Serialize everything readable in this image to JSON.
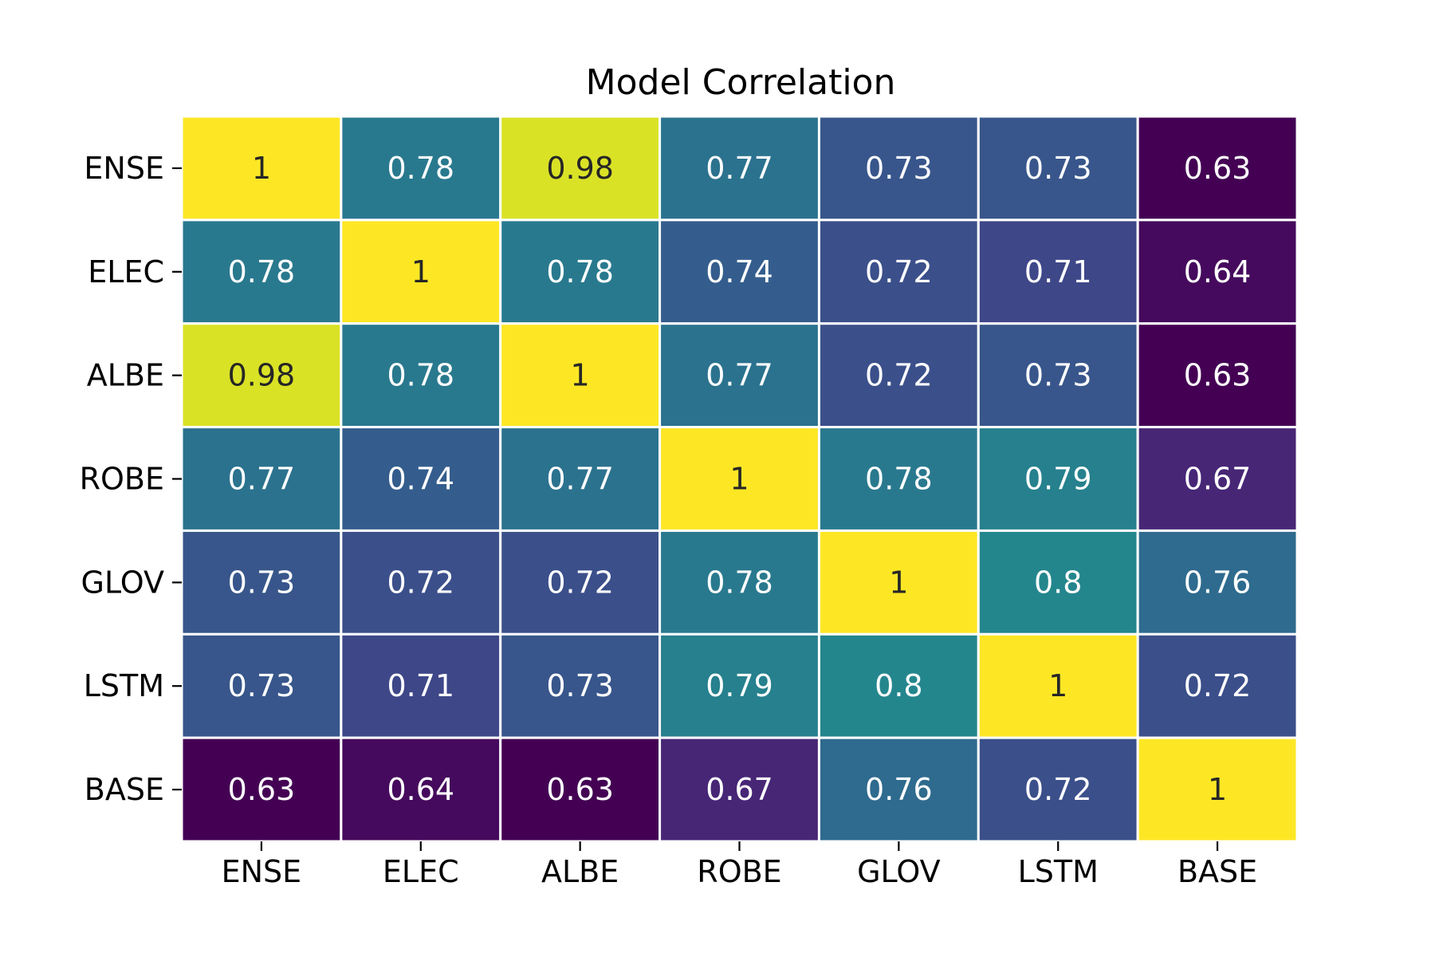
{
  "chart_data": {
    "type": "heatmap",
    "title": "Model Correlation",
    "xlabel": "",
    "ylabel": "",
    "x_categories": [
      "ENSE",
      "ELEC",
      "ALBE",
      "ROBE",
      "GLOV",
      "LSTM",
      "BASE"
    ],
    "y_categories": [
      "ENSE",
      "ELEC",
      "ALBE",
      "ROBE",
      "GLOV",
      "LSTM",
      "BASE"
    ],
    "values": [
      [
        1,
        0.78,
        0.98,
        0.77,
        0.73,
        0.73,
        0.63
      ],
      [
        0.78,
        1,
        0.78,
        0.74,
        0.72,
        0.71,
        0.64
      ],
      [
        0.98,
        0.78,
        1,
        0.77,
        0.72,
        0.73,
        0.63
      ],
      [
        0.77,
        0.74,
        0.77,
        1,
        0.78,
        0.79,
        0.67
      ],
      [
        0.73,
        0.72,
        0.72,
        0.78,
        1,
        0.8,
        0.76
      ],
      [
        0.73,
        0.71,
        0.73,
        0.79,
        0.8,
        1,
        0.72
      ],
      [
        0.63,
        0.64,
        0.63,
        0.67,
        0.76,
        0.72,
        1
      ]
    ],
    "colormap": "viridis",
    "color_range": [
      0.63,
      1
    ],
    "annotations": true,
    "legend": "none",
    "grid": false
  }
}
